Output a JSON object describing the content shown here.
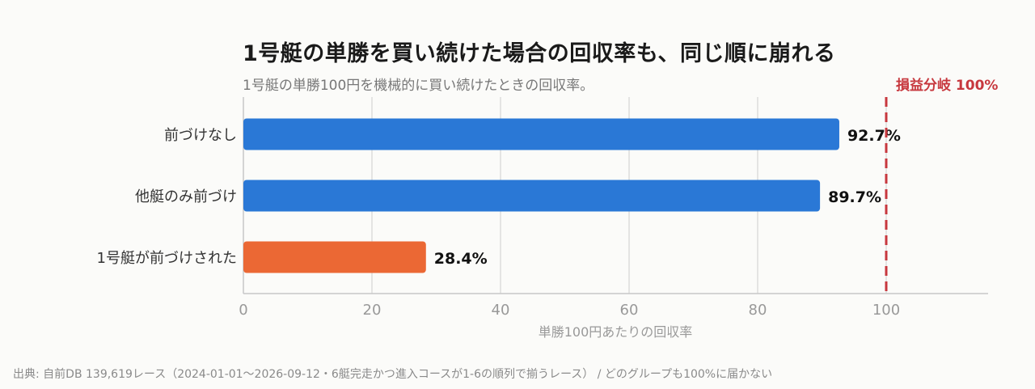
{
  "title": "1号艇の単勝を買い続けた場合の回収率も、同じ順に崩れる",
  "subtitle": "1号艇の単勝100円を機械的に買い続けたときの回収率。",
  "source": "出典: 自前DB 139,619レース（2024-01-01〜2026-09-12・6艇完走かつ進入コースが1-6の順列で揃うレース） / どのグループも100%に届かない",
  "chart_data": {
    "type": "bar",
    "orientation": "horizontal",
    "categories": [
      "前づけなし",
      "他艇のみ前づけ",
      "1号艇が前づけされた"
    ],
    "values": [
      92.7,
      89.7,
      28.4
    ],
    "value_labels": [
      "92.7%",
      "89.7%",
      "28.4%"
    ],
    "bar_colors": [
      "#2a78d6",
      "#2a78d6",
      "#eb6834"
    ],
    "xlabel": "単勝100円あたりの回収率",
    "xlim": [
      0,
      115
    ],
    "xticks": [
      0,
      20,
      40,
      60,
      80,
      100
    ],
    "xtick_labels": [
      "0",
      "20",
      "40",
      "60",
      "80",
      "100"
    ],
    "grid": true,
    "reference_line": {
      "value": 100,
      "label": "損益分岐 100%",
      "color": "#c7383e"
    }
  }
}
